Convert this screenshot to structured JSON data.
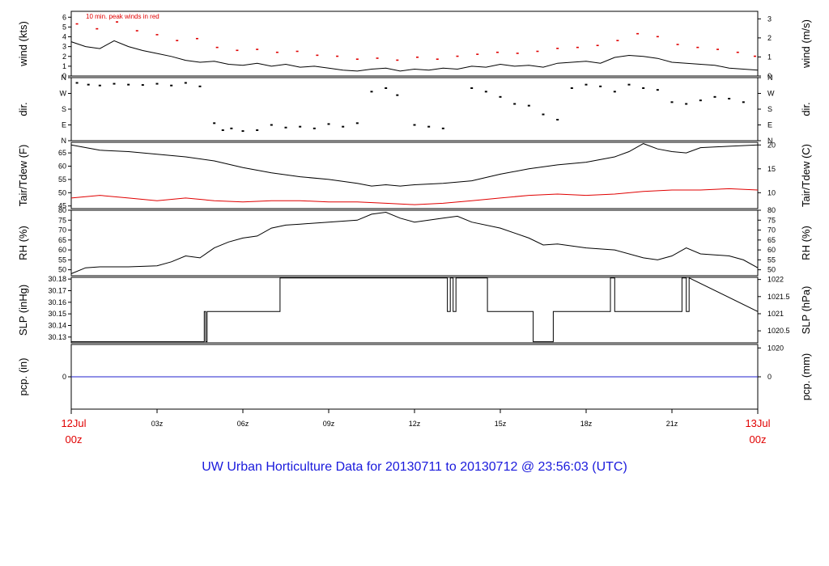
{
  "title": "UW Urban Horticulture Data for 20130711  to  20130712 @ 23:56:03  (UTC)",
  "colors": {
    "title": "#1a1adc",
    "wind_peak": "#e00000",
    "tdew": "#e00000",
    "precip": "#2020cc",
    "line": "#000000"
  },
  "x_axis": {
    "range": [
      0,
      24
    ],
    "start_label": {
      "day": "12Jul",
      "hour": "00z"
    },
    "end_label": {
      "day": "13Jul",
      "hour": "00z"
    },
    "ticks": [
      {
        "x": 3,
        "label": "03z"
      },
      {
        "x": 6,
        "label": "06z"
      },
      {
        "x": 9,
        "label": "09z"
      },
      {
        "x": 12,
        "label": "12z"
      },
      {
        "x": 15,
        "label": "15z"
      },
      {
        "x": 18,
        "label": "18z"
      },
      {
        "x": 21,
        "label": "21z"
      }
    ]
  },
  "chart_data": [
    {
      "type": "line",
      "panel": "wind",
      "ylabel_left": "wind (kts)",
      "ylabel_right": "wind (m/s)",
      "annotation": "10 min. peak winds in red",
      "ylim": [
        0,
        6.6
      ],
      "left_ticks": [
        0,
        1,
        2,
        3,
        4,
        5,
        6
      ],
      "right_ticks": [
        0,
        1,
        2,
        3
      ],
      "series": [
        {
          "x": [
            0,
            0.5,
            1,
            1.5,
            2,
            2.5,
            3,
            3.5,
            4,
            4.5,
            5,
            5.5,
            6,
            6.5,
            7,
            7.5,
            8,
            8.5,
            9,
            9.5,
            10,
            10.5,
            11,
            11.5,
            12,
            12.5,
            13,
            13.5,
            14,
            14.5,
            15,
            15.5,
            16,
            16.5,
            17,
            17.5,
            18,
            18.5,
            19,
            19.5,
            20,
            20.5,
            21,
            21.5,
            22,
            22.5,
            23,
            23.5,
            24
          ],
          "values": [
            3.5,
            3.0,
            2.8,
            3.6,
            3.0,
            2.6,
            2.3,
            2.0,
            1.6,
            1.4,
            1.5,
            1.2,
            1.1,
            1.3,
            1.0,
            1.2,
            0.9,
            1.0,
            0.8,
            0.6,
            0.5,
            0.7,
            0.8,
            0.5,
            0.7,
            0.6,
            0.8,
            0.7,
            1.0,
            0.9,
            1.2,
            1.0,
            1.1,
            0.9,
            1.3,
            1.4,
            1.5,
            1.3,
            1.9,
            2.1,
            2.0,
            1.8,
            1.4,
            1.3,
            1.2,
            1.1,
            0.8,
            0.7,
            0.6
          ]
        },
        {
          "name": "10 min. peak winds",
          "x": [
            0.2,
            0.9,
            1.6,
            2.3,
            3.0,
            3.7,
            4.4,
            5.1,
            5.8,
            6.5,
            7.2,
            7.9,
            8.6,
            9.3,
            10.0,
            10.7,
            11.4,
            12.1,
            12.8,
            13.5,
            14.2,
            14.9,
            15.6,
            16.3,
            17.0,
            17.7,
            18.4,
            19.1,
            19.8,
            20.5,
            21.2,
            21.9,
            22.6,
            23.3,
            23.9
          ],
          "values": [
            5.3,
            4.8,
            5.5,
            4.6,
            4.2,
            3.6,
            3.8,
            2.9,
            2.6,
            2.7,
            2.4,
            2.5,
            2.1,
            2.0,
            1.7,
            1.8,
            1.6,
            1.9,
            1.7,
            2.0,
            2.2,
            2.4,
            2.3,
            2.5,
            2.8,
            2.9,
            3.1,
            3.6,
            4.3,
            4.0,
            3.2,
            2.9,
            2.7,
            2.4,
            2.0
          ]
        }
      ]
    },
    {
      "type": "scatter",
      "panel": "direction",
      "ylabel_left": "dir.",
      "ylabel_right": "dir.",
      "ylim": [
        0,
        360
      ],
      "tick_values": [
        0,
        90,
        180,
        270,
        360
      ],
      "tick_labels": [
        "N",
        "E",
        "S",
        "W",
        "N"
      ],
      "x": [
        0.2,
        0.6,
        1.0,
        1.5,
        2.0,
        2.5,
        3.0,
        3.5,
        4.0,
        4.5,
        5.0,
        5.3,
        5.6,
        6.0,
        6.5,
        7.0,
        7.5,
        8.0,
        8.5,
        9.0,
        9.5,
        10.0,
        10.5,
        11.0,
        11.4,
        12.0,
        12.5,
        13.0,
        14.0,
        14.5,
        15.0,
        15.5,
        16.0,
        16.5,
        17.0,
        17.5,
        18.0,
        18.5,
        19.0,
        19.5,
        20.0,
        20.5,
        21.0,
        21.5,
        22.0,
        22.5,
        23.0,
        23.5
      ],
      "values": [
        330,
        320,
        315,
        325,
        320,
        318,
        325,
        315,
        330,
        310,
        100,
        60,
        70,
        55,
        60,
        90,
        75,
        80,
        70,
        95,
        80,
        100,
        280,
        300,
        260,
        90,
        80,
        70,
        300,
        280,
        250,
        210,
        200,
        150,
        120,
        300,
        320,
        310,
        280,
        320,
        300,
        290,
        220,
        210,
        230,
        250,
        240,
        220
      ]
    },
    {
      "type": "line",
      "panel": "temperature",
      "ylabel_left": "Tair/Tdew (F)",
      "ylabel_right": "Tair/Tdew (C)",
      "ylim": [
        44,
        69
      ],
      "left_ticks": [
        45,
        50,
        55,
        60,
        65
      ],
      "right_ticks": [
        10,
        15,
        20
      ],
      "series": [
        {
          "name": "Tair",
          "x": [
            0,
            1,
            2,
            3,
            4,
            5,
            6,
            7,
            8,
            9,
            10,
            10.5,
            11,
            11.5,
            12,
            13,
            14,
            15,
            16,
            17,
            18,
            19,
            19.5,
            20,
            20.5,
            21,
            21.5,
            22,
            23,
            24
          ],
          "values": [
            68,
            66,
            65.5,
            64.5,
            63.5,
            62,
            59.5,
            57.5,
            56,
            55,
            53.5,
            52.5,
            53,
            52.5,
            53,
            53.5,
            54.5,
            57,
            59,
            60.5,
            61.5,
            63.5,
            65.5,
            68.5,
            66.5,
            65.5,
            65,
            67,
            67.5,
            68
          ]
        },
        {
          "name": "Tdew",
          "x": [
            0,
            1,
            2,
            3,
            4,
            5,
            6,
            7,
            8,
            9,
            10,
            11,
            12,
            13,
            14,
            15,
            16,
            17,
            18,
            19,
            20,
            21,
            22,
            23,
            24
          ],
          "values": [
            48,
            49,
            48,
            47,
            48,
            47,
            46.5,
            47,
            47,
            46.5,
            46.5,
            46,
            45.5,
            46,
            47,
            48,
            49,
            49.5,
            49,
            49.5,
            50.5,
            51,
            51,
            51.5,
            51
          ]
        }
      ]
    },
    {
      "type": "line",
      "panel": "humidity",
      "ylabel_left": "RH (%)",
      "ylabel_right": "RH (%)",
      "ylim": [
        47,
        80
      ],
      "left_ticks": [
        50,
        55,
        60,
        65,
        70,
        75,
        80
      ],
      "right_ticks": [
        50,
        55,
        60,
        65,
        70,
        75,
        80
      ],
      "series": [
        {
          "x": [
            0,
            0.5,
            1,
            2,
            3,
            3.5,
            4,
            4.5,
            5,
            5.5,
            6,
            6.5,
            7,
            7.5,
            8,
            9,
            10,
            10.5,
            11,
            11.5,
            12,
            13,
            13.5,
            14,
            15,
            16,
            16.5,
            17,
            18,
            19,
            20,
            20.5,
            21,
            21.5,
            22,
            23,
            23.5,
            24
          ],
          "values": [
            48,
            51,
            51.5,
            51.5,
            52,
            54,
            57,
            56,
            61,
            64,
            66,
            67,
            71,
            72.5,
            73,
            74,
            75,
            78,
            79,
            76,
            74,
            76,
            77,
            74,
            71,
            66,
            62.5,
            63,
            61,
            60,
            56,
            55,
            57,
            61,
            58,
            57,
            55,
            51
          ]
        }
      ]
    },
    {
      "type": "line",
      "panel": "pressure",
      "ylabel_left": "SLP (inHg)",
      "ylabel_right": "SLP (hPa)",
      "ylim": [
        30.125,
        30.1815
      ],
      "left_ticks": [
        30.13,
        30.14,
        30.15,
        30.16,
        30.17,
        30.18
      ],
      "left_tick_labels": [
        "30.13",
        "30.14",
        "30.15",
        "30.16",
        "30.17",
        "30.18"
      ],
      "right_ticks": [
        1020,
        1020.5,
        1021,
        1021.5,
        1022
      ],
      "right_tick_labels": [
        "1020",
        "1020.5",
        "1021",
        "1021.5",
        "1022"
      ],
      "series": [
        {
          "x": [
            0,
            4.65,
            4.65,
            4.7,
            4.7,
            4.75,
            4.75,
            7.3,
            7.3,
            13.15,
            13.15,
            13.25,
            13.25,
            13.35,
            13.35,
            13.45,
            13.45,
            14.55,
            14.55,
            16.15,
            16.15,
            16.85,
            16.85,
            18.85,
            18.85,
            19.0,
            19.0,
            21.35,
            21.35,
            21.5,
            21.5,
            21.6,
            21.6,
            24
          ],
          "values": [
            30.126,
            30.126,
            30.152,
            30.152,
            30.126,
            30.126,
            30.152,
            30.152,
            30.181,
            30.181,
            30.152,
            30.152,
            30.181,
            30.181,
            30.152,
            30.152,
            30.181,
            30.181,
            30.152,
            30.152,
            30.126,
            30.126,
            30.152,
            30.152,
            30.181,
            30.181,
            30.152,
            30.152,
            30.181,
            30.181,
            30.152,
            30.152,
            30.181,
            30.152
          ]
        }
      ]
    },
    {
      "type": "line",
      "panel": "precipitation",
      "ylabel_left": "pcp. (in)",
      "ylabel_right": "pcp. (mm)",
      "ylim": [
        -1,
        1
      ],
      "left_ticks": [
        0
      ],
      "right_ticks": [
        0
      ],
      "series": [
        {
          "x": [
            0,
            24
          ],
          "values": [
            0,
            0
          ]
        }
      ]
    }
  ]
}
